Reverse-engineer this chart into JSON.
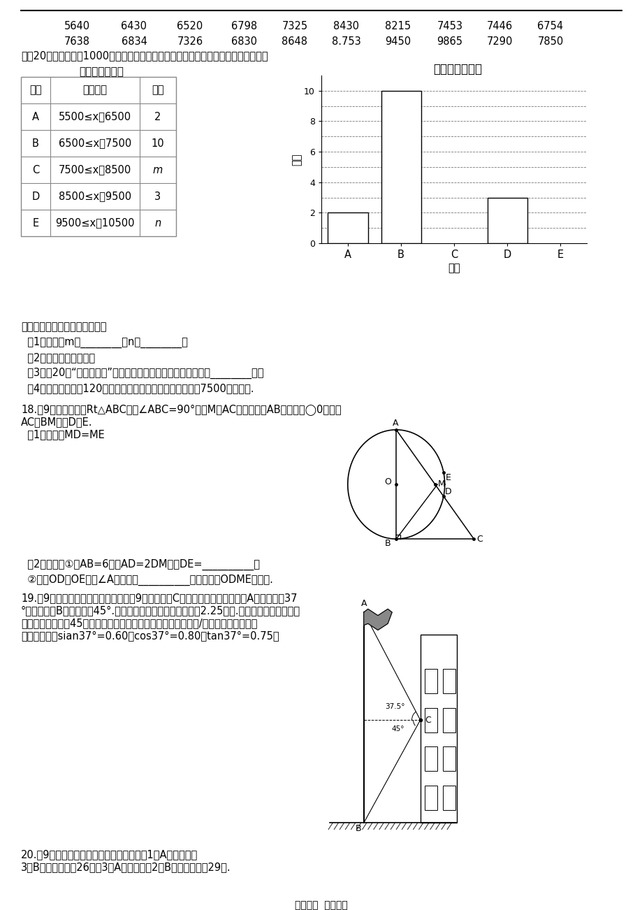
{
  "bg_color": "#ffffff",
  "data_rows": [
    [
      "5640",
      "6430",
      "6520",
      "6798",
      "7325",
      "8430",
      "8215",
      "7453",
      "7446",
      "6754"
    ],
    [
      "7638",
      "6834",
      "7326",
      "6830",
      "8648",
      "8.753",
      "9450",
      "9865",
      "7290",
      "7850"
    ]
  ],
  "intro_text": "对这20个数据按组距1000进行分组，并统计整理，绘制了如下尚不完整的统计图表：",
  "table_title": "步数分组统计表",
  "table_headers": [
    "组别",
    "步数分组",
    "频数"
  ],
  "table_rows": [
    [
      "A",
      "5500≤x＜6500",
      "2"
    ],
    [
      "B",
      "6500≤x＜7500",
      "10"
    ],
    [
      "C",
      "7500≤x＜8500",
      "m"
    ],
    [
      "D",
      "8500≤x＜9500",
      "3"
    ],
    [
      "E",
      "9500≤x＜10500",
      "n"
    ]
  ],
  "hist_title": "频数分布直方图",
  "hist_ylabel": "频数",
  "hist_xlabel": "组别",
  "hist_categories": [
    "A",
    "B",
    "C",
    "D",
    "E"
  ],
  "hist_values": [
    2,
    10,
    0,
    3,
    0
  ],
  "hist_visible": [
    true,
    true,
    false,
    true,
    false
  ],
  "hist_ylim": [
    0,
    11
  ],
  "hist_yticks": [
    0,
    2,
    4,
    6,
    8,
    10
  ],
  "questions_intro": "请根据以上信息解答下列问题：",
  "questions": [
    "  （1）填空：m＝________，n＝________；",
    "  （2）补全频数统计图；",
    "  （3）这20名“健步走运动”团队成员一天步行步数的中位数落在________组；",
    "  （4）若该团队共有120人，请估计其中一天行走步数不少于7500步的人数."
  ],
  "p18_line1": "18.（9分）如图，在Rt△ABC中，∠ABC=90°，点M是AC的中点，以AB为直径作◯0分别交",
  "p18_line2": "AC，BM于点D，E.",
  "p18_q1": "  （1）求证：MD=ME",
  "p18_q2a": "  （2）填空：①若AB=6，当AD=2DM时，DE=__________；",
  "p18_q2b": "  ②连接OD，OE，当∠A的度数为__________时，四边形ODME是菱形.",
  "p19_line1": "19.（9分）如图，小东在教学楼距地面9米高的窗口C处，测得正前方旗杆顶部A点的仰角为37",
  "p19_line2": "°，旗杆底部B点的俧角为45°.升旗时，国旗上端悬挂在距地面2.25米处.若国旗随国歌声再再升",
  "p19_line3": "起，并在国歌播放45秒结束时到达旗杆顶端，则国旗应以多少米/秒的速度匀速上升？",
  "p19_line4": "（参考数据：sian37°=0.60，cos37°=0.80，tan37°=0.75）",
  "p20_line1": "20.（9分）学校准备购进一批节能灯，已知1只A型节能灯和",
  "p20_line2": "3只B型节能灯共青26元；3只A型节能灯和2只B型节能灯共青29元.",
  "footer": "智汇文库  专业文档"
}
